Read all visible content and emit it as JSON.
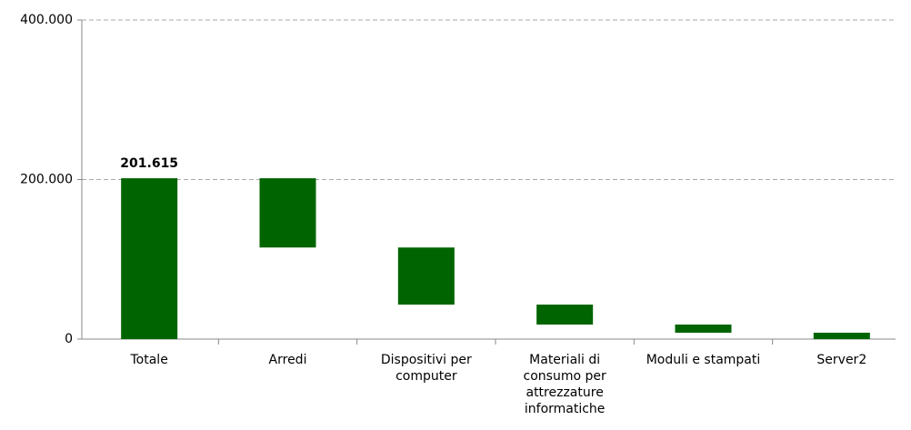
{
  "chart_data": {
    "type": "waterfall",
    "categories": [
      "Totale",
      "Arredi",
      "Dispositivi per computer",
      "Materiali di consumo per attrezzature informatiche",
      "Moduli e stampati",
      "Server2"
    ],
    "values": [
      201615,
      86800,
      71600,
      25000,
      10215,
      8000
    ],
    "value_labels": [
      "201.615",
      null,
      null,
      null,
      null,
      null
    ],
    "color": "#006400",
    "ylim": [
      0,
      400000
    ],
    "yticks": [
      0,
      {
        "value": 200000,
        "label": "200.000"
      },
      {
        "value": 400000,
        "label": "400.000"
      }
    ],
    "grid": true
  }
}
